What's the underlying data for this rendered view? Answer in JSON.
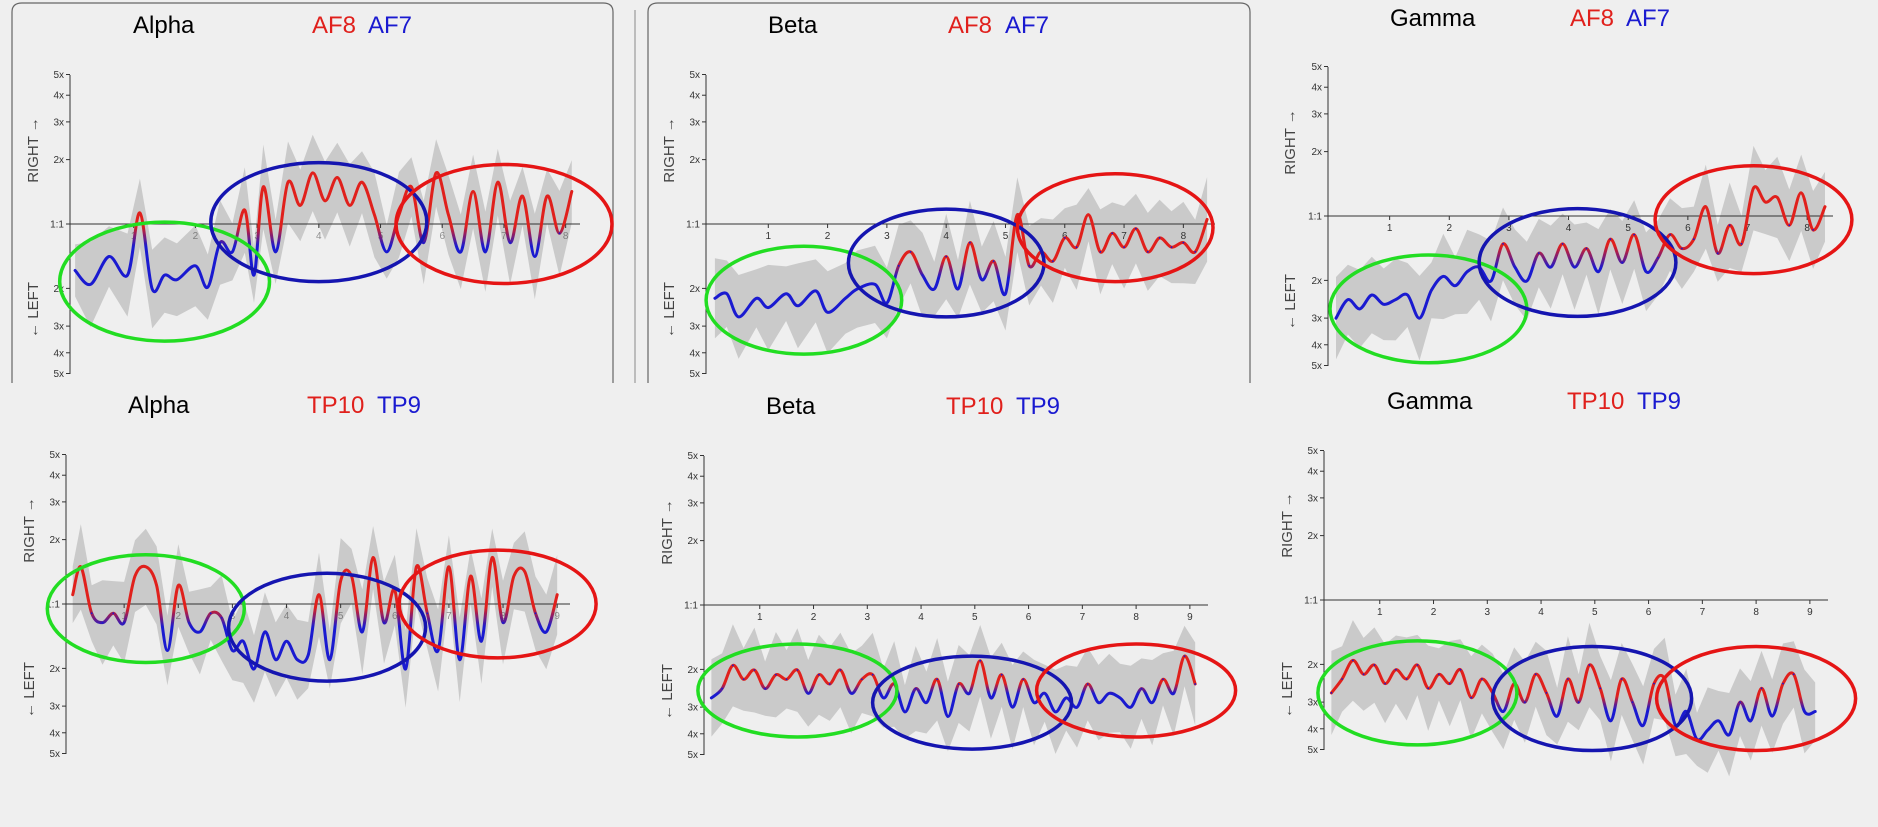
{
  "colors": {
    "background": "#efefef",
    "right_channel": "#e0201c",
    "left_channel": "#1a1ad0",
    "band": "#bdbdbd",
    "ellipse_green": "#22dd22",
    "ellipse_blue": "#1515b0",
    "ellipse_red": "#e51515"
  },
  "axis_text": {
    "right": "RIGHT →",
    "left": "← LEFT"
  },
  "chart_data": [
    {
      "type": "line",
      "band": "Alpha",
      "title": "Alpha",
      "channels": {
        "right": "AF8",
        "left": "AF7"
      },
      "y_ticks": [
        "5x",
        "4x",
        "3x",
        "2x",
        "1:1",
        "2x",
        "3x",
        "4x",
        "5x"
      ],
      "y_log_values": [
        -1.609,
        -1.386,
        -1.099,
        -0.693,
        0,
        0.693,
        1.099,
        1.386,
        1.609
      ],
      "x_ticks": [
        "1",
        "2",
        "3",
        "4",
        "5",
        "6",
        "7",
        "8"
      ],
      "xlim": [
        0,
        8.2
      ],
      "x_ticks_visible": false,
      "has_frame": true,
      "ellipses": [
        {
          "color": "green",
          "cx": 1.5,
          "cy": -0.62,
          "rx": 1.7,
          "ry": 0.64
        },
        {
          "color": "blue",
          "cx": 4.0,
          "cy": 0.02,
          "rx": 1.75,
          "ry": 0.64
        },
        {
          "color": "red",
          "cx": 7.0,
          "cy": 0.0,
          "rx": 1.75,
          "ry": 0.64
        }
      ],
      "series": {
        "x": [
          0.05,
          0.3,
          0.6,
          0.9,
          1.1,
          1.3,
          1.5,
          1.7,
          2.0,
          2.2,
          2.4,
          2.6,
          2.8,
          2.95,
          3.1,
          3.3,
          3.5,
          3.7,
          3.9,
          4.1,
          4.3,
          4.5,
          4.7,
          4.9,
          5.1,
          5.3,
          5.5,
          5.7,
          5.9,
          6.1,
          6.3,
          6.5,
          6.7,
          6.9,
          7.1,
          7.3,
          7.5,
          7.7,
          7.9,
          8.1
        ],
        "y": [
          -0.5,
          -0.65,
          -0.35,
          -0.55,
          0.12,
          -0.7,
          -0.55,
          -0.6,
          -0.45,
          -0.68,
          -0.2,
          -0.3,
          0.15,
          -0.55,
          0.4,
          -0.3,
          0.45,
          0.2,
          0.55,
          0.25,
          0.5,
          0.2,
          0.45,
          0.1,
          -0.3,
          0.1,
          0.4,
          -0.2,
          0.55,
          0.1,
          -0.3,
          0.35,
          -0.3,
          0.45,
          -0.2,
          0.3,
          -0.35,
          0.3,
          -0.1,
          0.35
        ]
      }
    },
    {
      "type": "line",
      "band": "Beta",
      "title": "Beta",
      "channels": {
        "right": "AF8",
        "left": "AF7"
      },
      "y_ticks": [
        "5x",
        "4x",
        "3x",
        "2x",
        "1:1",
        "2x",
        "3x",
        "4x",
        "5x"
      ],
      "y_log_values": [
        -1.609,
        -1.386,
        -1.099,
        -0.693,
        0,
        0.693,
        1.099,
        1.386,
        1.609
      ],
      "x_ticks": [
        "1",
        "2",
        "3",
        "4",
        "5",
        "6",
        "7",
        "8"
      ],
      "xlim": [
        0,
        8.5
      ],
      "x_ticks_visible": true,
      "has_frame": true,
      "ellipses": [
        {
          "color": "green",
          "cx": 1.6,
          "cy": -0.82,
          "rx": 1.65,
          "ry": 0.58
        },
        {
          "color": "blue",
          "cx": 4.0,
          "cy": -0.42,
          "rx": 1.65,
          "ry": 0.58
        },
        {
          "color": "red",
          "cx": 6.85,
          "cy": -0.04,
          "rx": 1.65,
          "ry": 0.58
        }
      ],
      "series": {
        "x": [
          0.1,
          0.3,
          0.5,
          0.8,
          1.0,
          1.3,
          1.5,
          1.8,
          2.0,
          2.3,
          2.5,
          2.8,
          3.0,
          3.2,
          3.4,
          3.6,
          3.8,
          4.0,
          4.2,
          4.4,
          4.6,
          4.8,
          5.0,
          5.2,
          5.4,
          5.6,
          5.8,
          6.0,
          6.2,
          6.4,
          6.6,
          6.8,
          7.0,
          7.2,
          7.4,
          7.6,
          7.8,
          8.0,
          8.2,
          8.4
        ],
        "y": [
          -0.8,
          -0.75,
          -1.0,
          -0.8,
          -0.9,
          -0.75,
          -0.88,
          -0.72,
          -0.95,
          -0.8,
          -0.7,
          -0.65,
          -0.85,
          -0.45,
          -0.3,
          -0.55,
          -0.7,
          -0.35,
          -0.7,
          -0.2,
          -0.6,
          -0.4,
          -0.75,
          0.1,
          -0.45,
          -0.3,
          -0.4,
          -0.15,
          -0.25,
          0.1,
          -0.3,
          -0.1,
          -0.25,
          -0.05,
          -0.3,
          -0.15,
          -0.25,
          -0.2,
          -0.3,
          0.05
        ]
      }
    },
    {
      "type": "line",
      "band": "Gamma",
      "title": "Gamma",
      "channels": {
        "right": "AF8",
        "left": "AF7"
      },
      "y_ticks": [
        "5x",
        "4x",
        "3x",
        "2x",
        "1:1",
        "2x",
        "3x",
        "4x",
        "5x"
      ],
      "y_log_values": [
        -1.609,
        -1.386,
        -1.099,
        -0.693,
        0,
        0.693,
        1.099,
        1.386,
        1.609
      ],
      "x_ticks": [
        "1",
        "2",
        "3",
        "4",
        "5",
        "6",
        "7",
        "8"
      ],
      "xlim": [
        0,
        8.4
      ],
      "x_ticks_visible": true,
      "has_frame": false,
      "ellipses": [
        {
          "color": "green",
          "cx": 1.65,
          "cy": -1.0,
          "rx": 1.65,
          "ry": 0.58
        },
        {
          "color": "blue",
          "cx": 4.15,
          "cy": -0.5,
          "rx": 1.65,
          "ry": 0.58
        },
        {
          "color": "red",
          "cx": 7.1,
          "cy": -0.04,
          "rx": 1.65,
          "ry": 0.58
        }
      ],
      "series": {
        "x": [
          0.1,
          0.3,
          0.5,
          0.7,
          0.9,
          1.1,
          1.3,
          1.5,
          1.7,
          1.9,
          2.1,
          2.3,
          2.5,
          2.7,
          2.9,
          3.1,
          3.3,
          3.5,
          3.7,
          3.9,
          4.1,
          4.3,
          4.5,
          4.7,
          4.9,
          5.1,
          5.3,
          5.5,
          5.7,
          5.9,
          6.1,
          6.3,
          6.5,
          6.7,
          6.9,
          7.1,
          7.3,
          7.5,
          7.7,
          7.9,
          8.1,
          8.3
        ],
        "y": [
          -1.1,
          -0.9,
          -1.0,
          -0.85,
          -0.95,
          -0.9,
          -0.85,
          -1.1,
          -0.8,
          -0.65,
          -0.75,
          -0.6,
          -0.55,
          -0.7,
          -0.3,
          -0.55,
          -0.7,
          -0.4,
          -0.55,
          -0.3,
          -0.55,
          -0.35,
          -0.6,
          -0.25,
          -0.5,
          -0.2,
          -0.6,
          -0.45,
          -0.2,
          -0.35,
          -0.25,
          0.1,
          -0.4,
          -0.1,
          -0.3,
          0.3,
          0.15,
          0.2,
          -0.1,
          0.25,
          -0.15,
          0.1
        ]
      }
    },
    {
      "type": "line",
      "band": "Alpha",
      "title": "Alpha",
      "channels": {
        "right": "TP10",
        "left": "TP9"
      },
      "y_ticks": [
        "5x",
        "4x",
        "3x",
        "2x",
        "1:1",
        "2x",
        "3x",
        "4x",
        "5x"
      ],
      "y_log_values": [
        -1.609,
        -1.386,
        -1.099,
        -0.693,
        0,
        0.693,
        1.099,
        1.386,
        1.609
      ],
      "x_ticks": [
        "1",
        "2",
        "3",
        "4",
        "5",
        "6",
        "7",
        "8",
        "9"
      ],
      "xlim": [
        0,
        9.2
      ],
      "x_ticks_visible": false,
      "has_frame": false,
      "ellipses": [
        {
          "color": "green",
          "cx": 1.4,
          "cy": -0.05,
          "rx": 1.82,
          "ry": 0.58
        },
        {
          "color": "blue",
          "cx": 4.75,
          "cy": -0.25,
          "rx": 1.82,
          "ry": 0.58
        },
        {
          "color": "red",
          "cx": 7.9,
          "cy": 0.0,
          "rx": 1.82,
          "ry": 0.58
        }
      ],
      "series": {
        "x": [
          0.05,
          0.2,
          0.4,
          0.6,
          0.8,
          1.0,
          1.2,
          1.4,
          1.6,
          1.8,
          2.0,
          2.2,
          2.4,
          2.6,
          2.8,
          3.0,
          3.2,
          3.4,
          3.6,
          3.8,
          4.0,
          4.2,
          4.4,
          4.6,
          4.8,
          5.0,
          5.2,
          5.4,
          5.6,
          5.8,
          6.0,
          6.2,
          6.4,
          6.6,
          6.8,
          7.0,
          7.2,
          7.4,
          7.6,
          7.8,
          8.0,
          8.2,
          8.4,
          8.6,
          8.8,
          9.0
        ],
        "y": [
          0.1,
          0.4,
          -0.1,
          -0.2,
          -0.1,
          -0.2,
          0.3,
          0.4,
          0.2,
          -0.5,
          0.2,
          -0.2,
          -0.3,
          -0.1,
          -0.15,
          -0.5,
          -0.4,
          -0.7,
          -0.3,
          -0.6,
          -0.4,
          -0.6,
          -0.55,
          0.1,
          -0.6,
          0.25,
          0.3,
          -0.3,
          0.5,
          -0.2,
          0.15,
          -0.7,
          0.4,
          -0.1,
          -0.5,
          0.4,
          -0.6,
          0.3,
          -0.4,
          0.5,
          -0.2,
          0.3,
          0.35,
          -0.1,
          -0.3,
          0.1
        ]
      }
    },
    {
      "type": "line",
      "band": "Beta",
      "title": "Beta",
      "channels": {
        "right": "TP10",
        "left": "TP9"
      },
      "y_ticks": [
        "5x",
        "4x",
        "3x",
        "2x",
        "1:1",
        "2x",
        "3x",
        "4x",
        "5x"
      ],
      "y_log_values": [
        -1.609,
        -1.386,
        -1.099,
        -0.693,
        0,
        0.693,
        1.099,
        1.386,
        1.609
      ],
      "x_ticks": [
        "1",
        "2",
        "3",
        "4",
        "5",
        "6",
        "7",
        "8",
        "9"
      ],
      "xlim": [
        0,
        9.3
      ],
      "x_ticks_visible": true,
      "has_frame": false,
      "ellipses": [
        {
          "color": "green",
          "cx": 1.7,
          "cy": -0.92,
          "rx": 1.85,
          "ry": 0.5
        },
        {
          "color": "blue",
          "cx": 4.95,
          "cy": -1.05,
          "rx": 1.85,
          "ry": 0.5
        },
        {
          "color": "red",
          "cx": 8.0,
          "cy": -0.92,
          "rx": 1.85,
          "ry": 0.5
        }
      ],
      "series": {
        "x": [
          0.1,
          0.3,
          0.5,
          0.7,
          0.9,
          1.1,
          1.3,
          1.5,
          1.7,
          1.9,
          2.1,
          2.3,
          2.5,
          2.7,
          2.9,
          3.1,
          3.3,
          3.5,
          3.7,
          3.9,
          4.1,
          4.3,
          4.5,
          4.7,
          4.9,
          5.1,
          5.3,
          5.5,
          5.7,
          5.9,
          6.1,
          6.3,
          6.5,
          6.7,
          6.9,
          7.1,
          7.3,
          7.5,
          7.7,
          7.9,
          8.1,
          8.3,
          8.5,
          8.7,
          8.9,
          9.1
        ],
        "y": [
          -1.0,
          -0.9,
          -0.65,
          -0.8,
          -0.7,
          -0.9,
          -0.75,
          -0.8,
          -0.7,
          -0.95,
          -0.75,
          -0.85,
          -0.7,
          -0.95,
          -0.8,
          -0.75,
          -1.0,
          -0.85,
          -1.15,
          -0.9,
          -1.05,
          -0.8,
          -1.2,
          -0.85,
          -0.95,
          -0.6,
          -1.0,
          -0.75,
          -1.1,
          -0.8,
          -1.05,
          -0.95,
          -1.15,
          -1.0,
          -1.1,
          -0.85,
          -1.05,
          -0.95,
          -1.0,
          -1.1,
          -0.9,
          -1.05,
          -0.8,
          -0.95,
          -0.55,
          -0.85
        ]
      }
    },
    {
      "type": "line",
      "band": "Gamma",
      "title": "Gamma",
      "channels": {
        "right": "TP10",
        "left": "TP9"
      },
      "y_ticks": [
        "5x",
        "4x",
        "3x",
        "2x",
        "1:1",
        "2x",
        "3x",
        "4x",
        "5x"
      ],
      "y_log_values": [
        -1.609,
        -1.386,
        -1.099,
        -0.693,
        0,
        0.693,
        1.099,
        1.386,
        1.609
      ],
      "x_ticks": [
        "1",
        "2",
        "3",
        "4",
        "5",
        "6",
        "7",
        "8",
        "9"
      ],
      "xlim": [
        0,
        9.3
      ],
      "x_ticks_visible": true,
      "has_frame": false,
      "ellipses": [
        {
          "color": "green",
          "cx": 1.7,
          "cy": -1.0,
          "rx": 1.85,
          "ry": 0.56
        },
        {
          "color": "blue",
          "cx": 4.95,
          "cy": -1.06,
          "rx": 1.85,
          "ry": 0.56
        },
        {
          "color": "red",
          "cx": 8.0,
          "cy": -1.06,
          "rx": 1.85,
          "ry": 0.56
        }
      ],
      "series": {
        "x": [
          0.1,
          0.3,
          0.5,
          0.7,
          0.9,
          1.1,
          1.3,
          1.5,
          1.7,
          1.9,
          2.1,
          2.3,
          2.5,
          2.7,
          2.9,
          3.1,
          3.3,
          3.5,
          3.7,
          3.9,
          4.1,
          4.3,
          4.5,
          4.7,
          4.9,
          5.1,
          5.3,
          5.5,
          5.7,
          5.9,
          6.1,
          6.3,
          6.5,
          6.7,
          6.9,
          7.1,
          7.3,
          7.5,
          7.7,
          7.9,
          8.1,
          8.3,
          8.5,
          8.7,
          8.9,
          9.1
        ],
        "y": [
          -1.0,
          -0.85,
          -0.65,
          -0.8,
          -0.7,
          -0.9,
          -0.75,
          -0.85,
          -0.7,
          -0.95,
          -0.8,
          -0.9,
          -0.75,
          -1.05,
          -0.85,
          -1.0,
          -1.2,
          -0.9,
          -1.1,
          -0.8,
          -1.0,
          -1.25,
          -0.85,
          -1.1,
          -0.7,
          -0.95,
          -1.3,
          -0.85,
          -1.1,
          -1.35,
          -0.9,
          -0.85,
          -1.35,
          -1.2,
          -1.5,
          -1.4,
          -1.3,
          -1.45,
          -1.1,
          -1.3,
          -0.95,
          -1.25,
          -0.9,
          -0.8,
          -1.2,
          -1.2
        ]
      }
    }
  ]
}
